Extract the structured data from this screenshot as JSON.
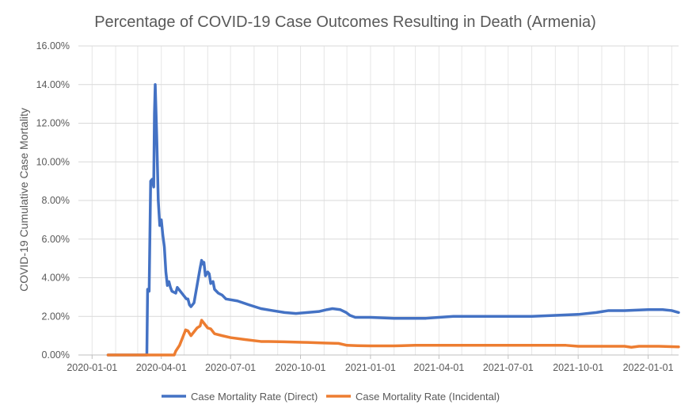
{
  "chart_data": {
    "type": "line",
    "title": "Percentage of COVID-19 Case Outcomes Resulting in Death (Armenia)",
    "xlabel": "",
    "ylabel": "COVID-19 Cumulative Case Mortality",
    "x_ticks": [
      "2020-01-01",
      "2020-04-01",
      "2020-07-01",
      "2020-10-01",
      "2021-01-01",
      "2021-04-01",
      "2021-07-01",
      "2021-10-01",
      "2022-01-01"
    ],
    "y_ticks": [
      "0.00%",
      "2.00%",
      "4.00%",
      "6.00%",
      "8.00%",
      "10.00%",
      "12.00%",
      "14.00%",
      "16.00%"
    ],
    "ylim": [
      0,
      16
    ],
    "xlim": [
      "2019-12-14",
      "2022-02-10"
    ],
    "grid": true,
    "legend_position": "bottom",
    "series": [
      {
        "name": "Case Mortality Rate (Direct)",
        "color": "#4472C4",
        "points": [
          [
            "2020-01-22",
            0
          ],
          [
            "2020-03-13",
            0
          ],
          [
            "2020-03-14",
            3.4
          ],
          [
            "2020-03-16",
            3.3
          ],
          [
            "2020-03-18",
            9.0
          ],
          [
            "2020-03-20",
            9.1
          ],
          [
            "2020-03-22",
            8.7
          ],
          [
            "2020-03-23",
            12.5
          ],
          [
            "2020-03-24",
            14.0
          ],
          [
            "2020-03-26",
            11.3
          ],
          [
            "2020-03-28",
            8.0
          ],
          [
            "2020-03-30",
            6.7
          ],
          [
            "2020-04-01",
            7.0
          ],
          [
            "2020-04-03",
            6.2
          ],
          [
            "2020-04-05",
            5.6
          ],
          [
            "2020-04-07",
            4.3
          ],
          [
            "2020-04-09",
            3.6
          ],
          [
            "2020-04-11",
            3.8
          ],
          [
            "2020-04-13",
            3.5
          ],
          [
            "2020-04-15",
            3.3
          ],
          [
            "2020-04-20",
            3.2
          ],
          [
            "2020-04-22",
            3.5
          ],
          [
            "2020-04-26",
            3.3
          ],
          [
            "2020-04-30",
            3.1
          ],
          [
            "2020-05-04",
            2.9
          ],
          [
            "2020-05-06",
            2.9
          ],
          [
            "2020-05-08",
            2.6
          ],
          [
            "2020-05-10",
            2.5
          ],
          [
            "2020-05-14",
            2.7
          ],
          [
            "2020-05-18",
            3.6
          ],
          [
            "2020-05-22",
            4.5
          ],
          [
            "2020-05-24",
            4.9
          ],
          [
            "2020-05-26",
            4.7
          ],
          [
            "2020-05-27",
            4.8
          ],
          [
            "2020-05-29",
            4.1
          ],
          [
            "2020-06-01",
            4.3
          ],
          [
            "2020-06-03",
            4.2
          ],
          [
            "2020-06-05",
            3.7
          ],
          [
            "2020-06-08",
            3.8
          ],
          [
            "2020-06-10",
            3.4
          ],
          [
            "2020-06-15",
            3.2
          ],
          [
            "2020-06-20",
            3.1
          ],
          [
            "2020-06-25",
            2.9
          ],
          [
            "2020-07-10",
            2.8
          ],
          [
            "2020-07-25",
            2.6
          ],
          [
            "2020-08-10",
            2.4
          ],
          [
            "2020-08-25",
            2.3
          ],
          [
            "2020-09-10",
            2.2
          ],
          [
            "2020-09-25",
            2.15
          ],
          [
            "2020-10-10",
            2.2
          ],
          [
            "2020-10-25",
            2.25
          ],
          [
            "2020-11-05",
            2.35
          ],
          [
            "2020-11-12",
            2.4
          ],
          [
            "2020-11-22",
            2.35
          ],
          [
            "2020-11-30",
            2.2
          ],
          [
            "2020-12-05",
            2.05
          ],
          [
            "2020-12-12",
            1.95
          ],
          [
            "2021-01-01",
            1.95
          ],
          [
            "2021-02-01",
            1.9
          ],
          [
            "2021-03-15",
            1.9
          ],
          [
            "2021-04-01",
            1.95
          ],
          [
            "2021-04-20",
            2.0
          ],
          [
            "2021-06-01",
            2.0
          ],
          [
            "2021-08-01",
            2.0
          ],
          [
            "2021-09-01",
            2.05
          ],
          [
            "2021-10-01",
            2.1
          ],
          [
            "2021-10-25",
            2.2
          ],
          [
            "2021-11-10",
            2.3
          ],
          [
            "2021-12-01",
            2.3
          ],
          [
            "2022-01-01",
            2.35
          ],
          [
            "2022-01-20",
            2.35
          ],
          [
            "2022-02-01",
            2.3
          ],
          [
            "2022-02-10",
            2.2
          ]
        ]
      },
      {
        "name": "Case Mortality Rate (Incidental)",
        "color": "#ED7D31",
        "points": [
          [
            "2020-01-22",
            0
          ],
          [
            "2020-04-18",
            0
          ],
          [
            "2020-04-20",
            0.2
          ],
          [
            "2020-04-25",
            0.5
          ],
          [
            "2020-04-30",
            1.0
          ],
          [
            "2020-05-03",
            1.3
          ],
          [
            "2020-05-06",
            1.25
          ],
          [
            "2020-05-10",
            1.0
          ],
          [
            "2020-05-14",
            1.2
          ],
          [
            "2020-05-18",
            1.4
          ],
          [
            "2020-05-22",
            1.5
          ],
          [
            "2020-05-24",
            1.8
          ],
          [
            "2020-05-28",
            1.6
          ],
          [
            "2020-06-01",
            1.4
          ],
          [
            "2020-06-05",
            1.35
          ],
          [
            "2020-06-10",
            1.1
          ],
          [
            "2020-06-20",
            1.0
          ],
          [
            "2020-07-01",
            0.9
          ],
          [
            "2020-07-20",
            0.8
          ],
          [
            "2020-08-10",
            0.7
          ],
          [
            "2020-08-20",
            0.7
          ],
          [
            "2020-09-10",
            0.68
          ],
          [
            "2020-10-10",
            0.65
          ],
          [
            "2020-11-01",
            0.62
          ],
          [
            "2020-11-20",
            0.6
          ],
          [
            "2020-12-01",
            0.5
          ],
          [
            "2020-12-15",
            0.48
          ],
          [
            "2021-01-01",
            0.47
          ],
          [
            "2021-02-01",
            0.47
          ],
          [
            "2021-03-01",
            0.5
          ],
          [
            "2021-05-01",
            0.5
          ],
          [
            "2021-07-01",
            0.5
          ],
          [
            "2021-09-01",
            0.5
          ],
          [
            "2021-09-15",
            0.5
          ],
          [
            "2021-10-01",
            0.45
          ],
          [
            "2021-12-01",
            0.45
          ],
          [
            "2021-12-10",
            0.4
          ],
          [
            "2021-12-20",
            0.45
          ],
          [
            "2022-01-15",
            0.45
          ],
          [
            "2022-02-10",
            0.42
          ]
        ]
      }
    ]
  }
}
